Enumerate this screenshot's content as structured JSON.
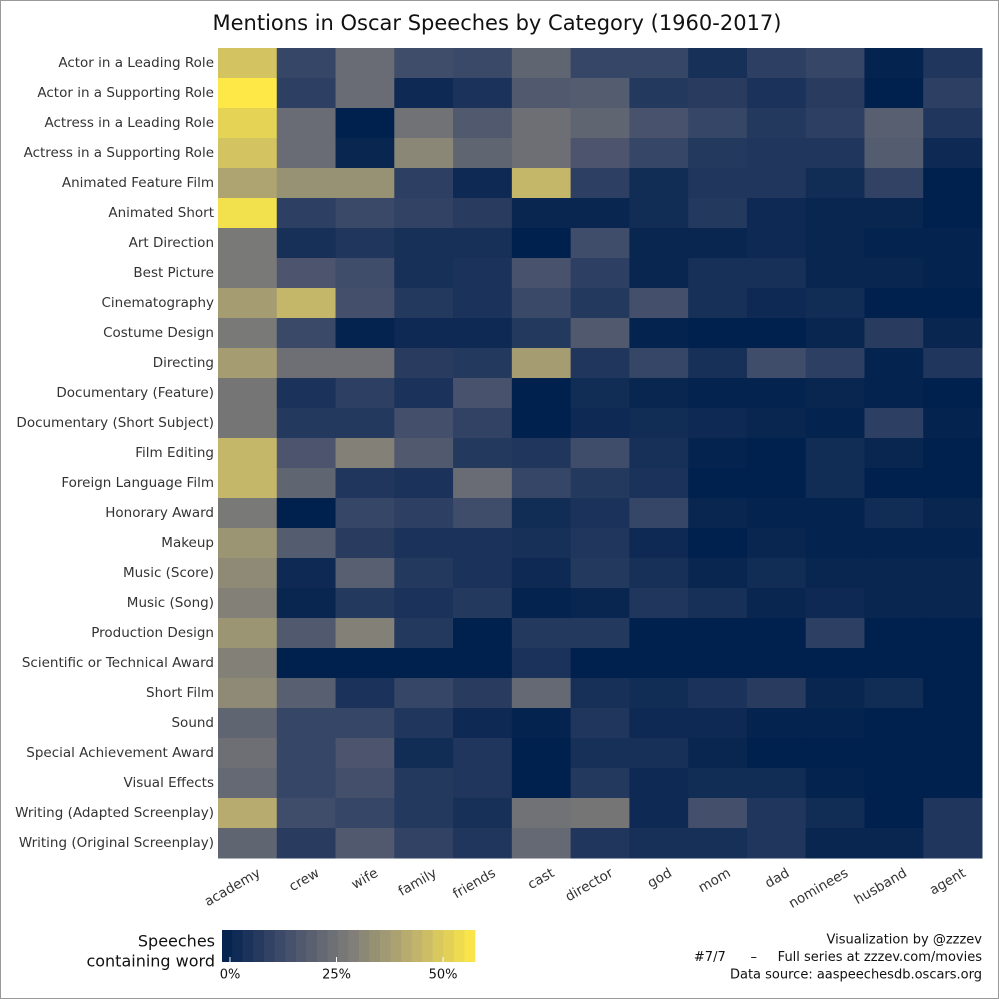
{
  "chart_data": {
    "type": "heatmap",
    "title": "Mentions in Oscar Speeches by Category (1960-2017)",
    "x": [
      "academy",
      "crew",
      "wife",
      "family",
      "friends",
      "cast",
      "director",
      "god",
      "mom",
      "dad",
      "nominees",
      "husband",
      "agent"
    ],
    "y": [
      "Actor in a Leading Role",
      "Actor in a Supporting Role",
      "Actress in a Leading Role",
      "Actress in a Supporting Role",
      "Animated Feature Film",
      "Animated Short",
      "Art Direction",
      "Best Picture",
      "Cinematography",
      "Costume Design",
      "Directing",
      "Documentary (Feature)",
      "Documentary (Short Subject)",
      "Film Editing",
      "Foreign Language Film",
      "Honorary Award",
      "Makeup",
      "Music (Score)",
      "Music (Song)",
      "Production Design",
      "Scientific or Technical Award",
      "Short Film",
      "Sound",
      "Special Achievement Award",
      "Visual Effects",
      "Writing (Adapted Screenplay)",
      "Writing (Original Screenplay)"
    ],
    "values": [
      [
        48,
        12,
        24,
        14,
        13,
        22,
        12,
        12,
        5,
        10,
        12,
        1,
        7
      ],
      [
        57,
        10,
        24,
        3,
        6,
        18,
        19,
        8,
        9,
        6,
        9,
        0,
        10
      ],
      [
        52,
        24,
        0,
        26,
        18,
        25,
        22,
        16,
        12,
        8,
        10,
        20,
        7
      ],
      [
        48,
        24,
        2,
        32,
        22,
        25,
        17,
        12,
        8,
        7,
        7,
        19,
        3
      ],
      [
        40,
        35,
        35,
        10,
        3,
        45,
        10,
        4,
        7,
        7,
        4,
        11,
        0
      ],
      [
        55,
        10,
        13,
        11,
        9,
        2,
        2,
        4,
        8,
        3,
        2,
        2,
        0
      ],
      [
        28,
        5,
        7,
        5,
        5,
        0,
        14,
        2,
        2,
        3,
        2,
        1,
        1
      ],
      [
        28,
        17,
        14,
        5,
        6,
        16,
        10,
        2,
        5,
        5,
        2,
        2,
        1
      ],
      [
        38,
        45,
        15,
        8,
        6,
        13,
        8,
        15,
        5,
        3,
        4,
        0,
        0
      ],
      [
        28,
        13,
        1,
        3,
        3,
        8,
        18,
        1,
        0,
        0,
        2,
        9,
        2
      ],
      [
        38,
        25,
        25,
        9,
        8,
        38,
        7,
        12,
        5,
        14,
        10,
        1,
        7
      ],
      [
        27,
        6,
        10,
        6,
        16,
        0,
        4,
        2,
        1,
        1,
        2,
        1,
        0
      ],
      [
        27,
        8,
        8,
        15,
        11,
        0,
        3,
        4,
        3,
        2,
        1,
        10,
        1
      ],
      [
        45,
        17,
        30,
        18,
        8,
        7,
        14,
        5,
        1,
        0,
        4,
        2,
        0
      ],
      [
        45,
        22,
        7,
        6,
        24,
        12,
        8,
        6,
        0,
        0,
        4,
        0,
        0
      ],
      [
        28,
        0,
        12,
        10,
        14,
        4,
        6,
        12,
        2,
        1,
        1,
        4,
        2
      ],
      [
        36,
        19,
        9,
        6,
        6,
        5,
        7,
        3,
        0,
        2,
        1,
        1,
        1
      ],
      [
        33,
        3,
        20,
        8,
        6,
        3,
        8,
        5,
        2,
        4,
        2,
        2,
        2
      ],
      [
        30,
        2,
        8,
        6,
        8,
        1,
        2,
        7,
        5,
        2,
        3,
        2,
        2
      ],
      [
        36,
        18,
        30,
        8,
        0,
        8,
        8,
        0,
        0,
        0,
        10,
        0,
        0
      ],
      [
        30,
        0,
        0,
        0,
        0,
        6,
        0,
        0,
        0,
        0,
        0,
        0,
        0
      ],
      [
        33,
        20,
        6,
        12,
        9,
        23,
        5,
        4,
        6,
        9,
        2,
        4,
        0
      ],
      [
        22,
        12,
        12,
        7,
        3,
        1,
        7,
        3,
        3,
        1,
        1,
        0,
        0
      ],
      [
        25,
        12,
        17,
        4,
        7,
        0,
        5,
        5,
        2,
        0,
        0,
        0,
        0
      ],
      [
        23,
        12,
        15,
        8,
        7,
        0,
        8,
        3,
        4,
        4,
        1,
        0,
        0
      ],
      [
        42,
        14,
        12,
        8,
        5,
        26,
        27,
        3,
        15,
        7,
        4,
        0,
        7
      ],
      [
        22,
        9,
        18,
        11,
        7,
        23,
        7,
        5,
        5,
        7,
        2,
        2,
        7
      ]
    ],
    "colorscale": [
      "#00204d",
      "#414d6b",
      "#7c7b78",
      "#bcaf6f",
      "#ffea46"
    ],
    "zlim": [
      0,
      57.5
    ],
    "legend_title": [
      "Speeches",
      "containing word"
    ],
    "zticks": [
      {
        "value": 0,
        "label": "0%"
      },
      {
        "value": 25,
        "label": "25%"
      },
      {
        "value": 50,
        "label": "50%"
      }
    ],
    "credits": [
      "Visualization by @zzzev",
      "#7/7      –     Full series at zzzev.com/movies",
      "Data source: aaspeechesdb.oscars.org"
    ]
  }
}
